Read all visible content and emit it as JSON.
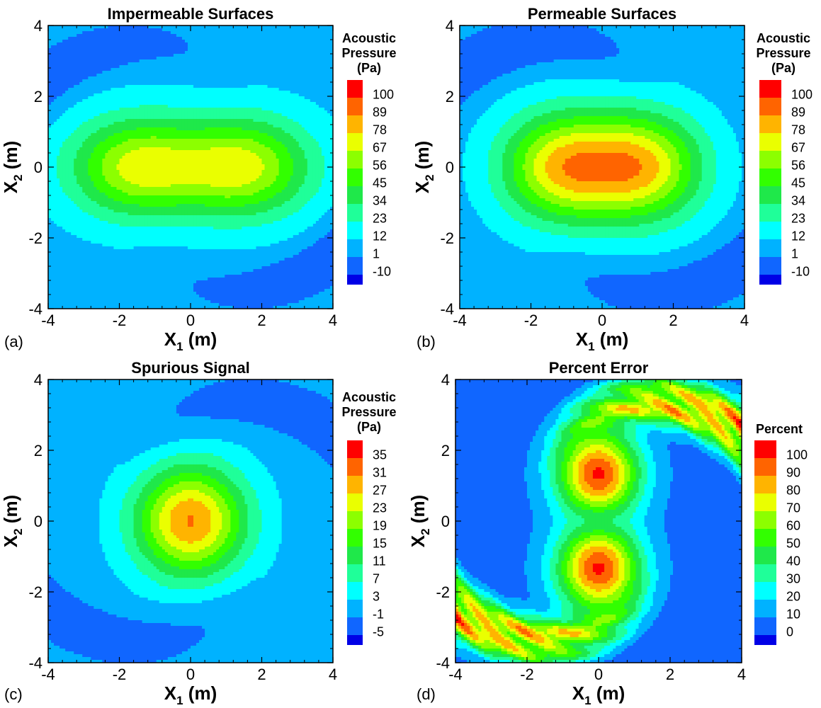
{
  "colors": {
    "ramp": [
      "#0000e6",
      "#1066ff",
      "#00b2ff",
      "#00ffff",
      "#1fff99",
      "#1fe84a",
      "#32ff00",
      "#8cff00",
      "#eaff00",
      "#ffb400",
      "#ff6400",
      "#ff0000"
    ]
  },
  "chart_data": [
    {
      "type": "heatmap",
      "label": "(a)",
      "title": "Impermeable Surfaces",
      "xlabel": "X",
      "xlabel_sub": "1",
      "xlabel_unit": "(m)",
      "ylabel": "X",
      "ylabel_sub": "2",
      "ylabel_unit": "(m)",
      "xlim": [
        -4,
        4
      ],
      "ylim": [
        -4,
        4
      ],
      "xticks": [
        "-4",
        "-2",
        "0",
        "2",
        "4"
      ],
      "yticks": [
        "-4",
        "-2",
        "0",
        "2",
        "4"
      ],
      "legend": {
        "title": [
          "Acoustic",
          "Pressure",
          "(Pa)"
        ],
        "levels": [
          "100",
          "89",
          "78",
          "67",
          "56",
          "45",
          "34",
          "23",
          "12",
          "1",
          "-10"
        ],
        "values": [
          -10,
          1,
          12,
          23,
          34,
          45,
          56,
          67,
          78,
          89,
          100
        ]
      },
      "field": {
        "kind": "sources",
        "background": 8,
        "sources": [
          {
            "x": -1.5,
            "y": 0,
            "amp": 62,
            "sx": 1.9,
            "sy": 1.4
          },
          {
            "x": 1.5,
            "y": 0,
            "amp": 62,
            "sx": 1.9,
            "sy": 1.4
          }
        ],
        "swirl": {
          "amp": -15,
          "dir": 1,
          "width": 0.55,
          "offset": 0.0,
          "rmin": 3.2
        }
      }
    },
    {
      "type": "heatmap",
      "label": "(b)",
      "title": "Permeable Surfaces",
      "xlabel": "X",
      "xlabel_sub": "1",
      "xlabel_unit": "(m)",
      "ylabel": "X",
      "ylabel_sub": "2",
      "ylabel_unit": "(m)",
      "xlim": [
        -4,
        4
      ],
      "ylim": [
        -4,
        4
      ],
      "xticks": [
        "-4",
        "-2",
        "0",
        "2",
        "4"
      ],
      "yticks": [
        "-4",
        "-2",
        "0",
        "2",
        "4"
      ],
      "legend": {
        "title": [
          "Acoustic",
          "Pressure",
          "(Pa)"
        ],
        "levels": [
          "100",
          "89",
          "78",
          "67",
          "56",
          "45",
          "34",
          "23",
          "12",
          "1",
          "-10"
        ],
        "values": [
          -10,
          1,
          12,
          23,
          34,
          45,
          56,
          67,
          78,
          89,
          100
        ]
      },
      "field": {
        "kind": "sources",
        "background": 7,
        "sources": [
          {
            "x": -1.15,
            "y": 0,
            "amp": 70,
            "sx": 1.7,
            "sy": 1.55
          },
          {
            "x": 1.15,
            "y": 0,
            "amp": 70,
            "sx": 1.7,
            "sy": 1.55
          }
        ],
        "swirl": {
          "amp": -14,
          "dir": 1,
          "width": 0.6,
          "offset": 0.15,
          "rmin": 3.0
        }
      }
    },
    {
      "type": "heatmap",
      "label": "(c)",
      "title": "Spurious Signal",
      "xlabel": "X",
      "xlabel_sub": "1",
      "xlabel_unit": "(m)",
      "ylabel": "X",
      "ylabel_sub": "2",
      "ylabel_unit": "(m)",
      "xlim": [
        -4,
        4
      ],
      "ylim": [
        -4,
        4
      ],
      "xticks": [
        "-4",
        "-2",
        "0",
        "2",
        "4"
      ],
      "yticks": [
        "-4",
        "-2",
        "0",
        "2",
        "4"
      ],
      "legend": {
        "title": [
          "Acoustic",
          "Pressure",
          "(Pa)"
        ],
        "levels": [
          "35",
          "31",
          "27",
          "23",
          "19",
          "15",
          "11",
          "7",
          "3",
          "-1",
          "-5"
        ],
        "values": [
          -5,
          -1,
          3,
          7,
          11,
          15,
          19,
          23,
          27,
          31,
          35
        ]
      },
      "field": {
        "kind": "sources",
        "background": 1.2,
        "sources": [
          {
            "x": 0,
            "y": 0,
            "amp": 30,
            "sx": 1.55,
            "sy": 1.55
          }
        ],
        "swirl": {
          "amp": -3.6,
          "dir": -1,
          "width": 0.9,
          "offset": 0.0,
          "rmin": 2.4
        }
      }
    },
    {
      "type": "heatmap",
      "label": "(d)",
      "title": "Percent Error",
      "xlabel": "X",
      "xlabel_sub": "1",
      "xlabel_unit": "(m)",
      "ylabel": "X",
      "ylabel_sub": "2",
      "ylabel_unit": "(m)",
      "xlim": [
        -4,
        4
      ],
      "ylim": [
        -4,
        4
      ],
      "xticks": [
        "-4",
        "-2",
        "0",
        "2",
        "4"
      ],
      "yticks": [
        "-4",
        "-2",
        "0",
        "2",
        "4"
      ],
      "legend": {
        "title": [
          "Percent"
        ],
        "levels": [
          "100",
          "90",
          "80",
          "70",
          "60",
          "50",
          "40",
          "30",
          "20",
          "10",
          "0"
        ],
        "values": [
          0,
          10,
          20,
          30,
          40,
          50,
          60,
          70,
          80,
          90,
          100
        ]
      },
      "field": {
        "kind": "error",
        "background": 6,
        "sources": [
          {
            "x": 0,
            "y": 1.35,
            "amp": 95,
            "sx": 1.15,
            "sy": 1.2
          },
          {
            "x": 0,
            "y": -1.35,
            "amp": 95,
            "sx": 1.15,
            "sy": 1.2
          }
        ],
        "swirl": {
          "amp": 95,
          "dir": -1,
          "width": 0.42,
          "offset": 0.0,
          "rmin": 3.0
        }
      }
    }
  ]
}
